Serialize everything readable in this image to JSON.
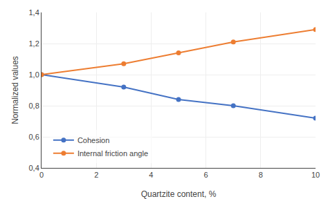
{
  "chart_data": {
    "type": "line",
    "xlabel": "Quartzite content, %",
    "ylabel": "Normalized values",
    "series": [
      {
        "name": "Cohesion",
        "color": "#4472C4",
        "x": [
          0,
          3,
          5,
          7,
          10
        ],
        "values": [
          1.0,
          0.92,
          0.84,
          0.8,
          0.72
        ]
      },
      {
        "name": "Internal friction angle",
        "color": "#ED7D31",
        "x": [
          0,
          3,
          5,
          7,
          10
        ],
        "values": [
          1.0,
          1.07,
          1.14,
          1.21,
          1.29
        ]
      }
    ],
    "xlim": [
      0,
      10
    ],
    "xticks": [
      0,
      2,
      4,
      6,
      8,
      10
    ],
    "ylim": [
      0.4,
      1.4
    ],
    "yticks": [
      {
        "value": 0.4,
        "label": "0,4"
      },
      {
        "value": 0.6,
        "label": "0,6"
      },
      {
        "value": 0.8,
        "label": "0,8"
      },
      {
        "value": 1.0,
        "label": "1,0"
      },
      {
        "value": 1.2,
        "label": "1,2"
      },
      {
        "value": 1.4,
        "label": "1,4"
      }
    ],
    "grid": true,
    "legend": "lower left",
    "marker": "circle",
    "line_style": "solid"
  }
}
